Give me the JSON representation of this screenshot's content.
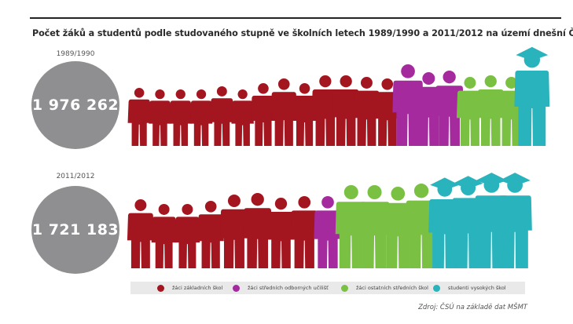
{
  "title": "Počet žáků a studentů podle studovaného stupně ve školních letech 1989/1990 a 2011/2012 na území dnešní ČR",
  "source": "Zdroj:  ČSÚ na základě dat MŠMT",
  "colors": {
    "zakladni": "#a3151f",
    "odborne_ucliste": "#a42a9e",
    "ostatni_stredni": "#7ac143",
    "vysoke": "#29b3bd",
    "circle": "#8f8f91"
  },
  "chart_data": {
    "type": "pictogram",
    "title": "Počet žáků a studentů podle studovaného stupně ve školních letech 1989/1990 a 2011/2012 na území dnešní ČR",
    "categories": [
      "žáci základních škol",
      "žáci středních odborných učilišť",
      "žáci ostatních středních škol",
      "studenti vysokých škol"
    ],
    "rows": [
      {
        "year": "1989/1990",
        "total": "1 976 262",
        "icon_counts": [
          13,
          3,
          3,
          1
        ]
      },
      {
        "year": "2011/2012",
        "total": "1 721 183",
        "icon_counts": [
          8,
          1,
          4,
          4
        ]
      }
    ],
    "legend_placement": "bottom"
  },
  "legend": [
    {
      "key": "zakladni",
      "label": "žáci základních škol"
    },
    {
      "key": "odborne_ucliste",
      "label": "žáci středních odborných učilišť"
    },
    {
      "key": "ostatni_stredni",
      "label": "žáci ostatních středních škol"
    },
    {
      "key": "vysoke",
      "label": "studenti vysokých škol"
    }
  ]
}
